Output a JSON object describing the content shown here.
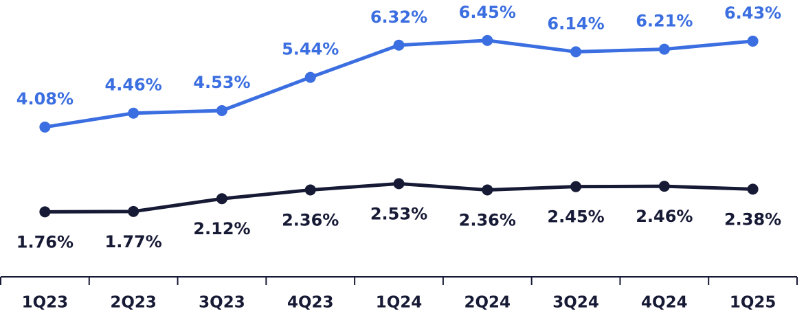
{
  "chart_data": {
    "type": "line",
    "categories": [
      "1Q23",
      "2Q23",
      "3Q23",
      "4Q23",
      "1Q24",
      "2Q24",
      "3Q24",
      "4Q24",
      "1Q25"
    ],
    "series": [
      {
        "color": "#3b6ee0",
        "label_position": "above",
        "values": [
          4.08,
          4.46,
          4.53,
          5.44,
          6.32,
          6.45,
          6.14,
          6.21,
          6.43
        ],
        "value_labels": [
          "4.08%",
          "4.46%",
          "4.53%",
          "5.44%",
          "6.32%",
          "6.45%",
          "6.14%",
          "6.21%",
          "6.43%"
        ]
      },
      {
        "color": "#171a35",
        "label_position": "below",
        "values": [
          1.76,
          1.77,
          2.12,
          2.36,
          2.53,
          2.36,
          2.45,
          2.46,
          2.38
        ],
        "value_labels": [
          "1.76%",
          "1.77%",
          "2.12%",
          "2.36%",
          "2.53%",
          "2.36%",
          "2.45%",
          "2.46%",
          "2.38%"
        ]
      }
    ]
  }
}
